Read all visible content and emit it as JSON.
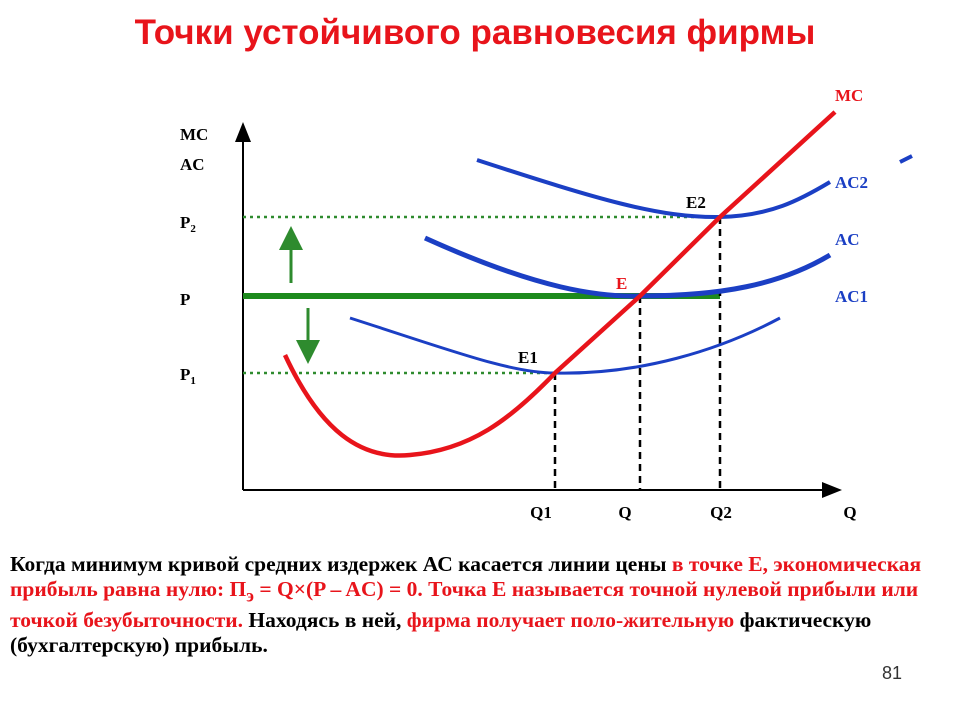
{
  "title": "Точки устойчивого равновесия фирмы",
  "axis": {
    "y_label_1": "MC",
    "y_label_2": "AC",
    "x_label": "Q"
  },
  "price_labels": [
    {
      "base": "P",
      "sub": "2"
    },
    {
      "base": "P"
    },
    {
      "base": "P",
      "sub": "1"
    }
  ],
  "quantity_labels": [
    "Q1",
    "Q",
    "Q2"
  ],
  "points": [
    "E2",
    "E",
    "E1"
  ],
  "curve_labels": {
    "mc": "MC",
    "ac2": "AC2",
    "ac": "AC",
    "ac1": "AC1"
  },
  "paragraph": [
    {
      "text": "Когда минимум кривой средних издержек АС касается линии цены ",
      "color": "black"
    },
    {
      "text": "в точке Е, экономическая прибыль равна нулю: П",
      "color": "red"
    },
    {
      "text": "э",
      "color": "red",
      "sub": true
    },
    {
      "text": " = Q×(P – AC) = 0. Точка Е называется точной нулевой прибыли или точкой безубыточности.",
      "color": "red"
    },
    {
      "text": " Находясь в ней, ",
      "color": "black"
    },
    {
      "text": "фирма получает поло-жительную",
      "color": "red"
    },
    {
      "text": " фактическую (бухгалтерскую) прибыль.",
      "color": "black"
    }
  ],
  "page_number": "81"
}
